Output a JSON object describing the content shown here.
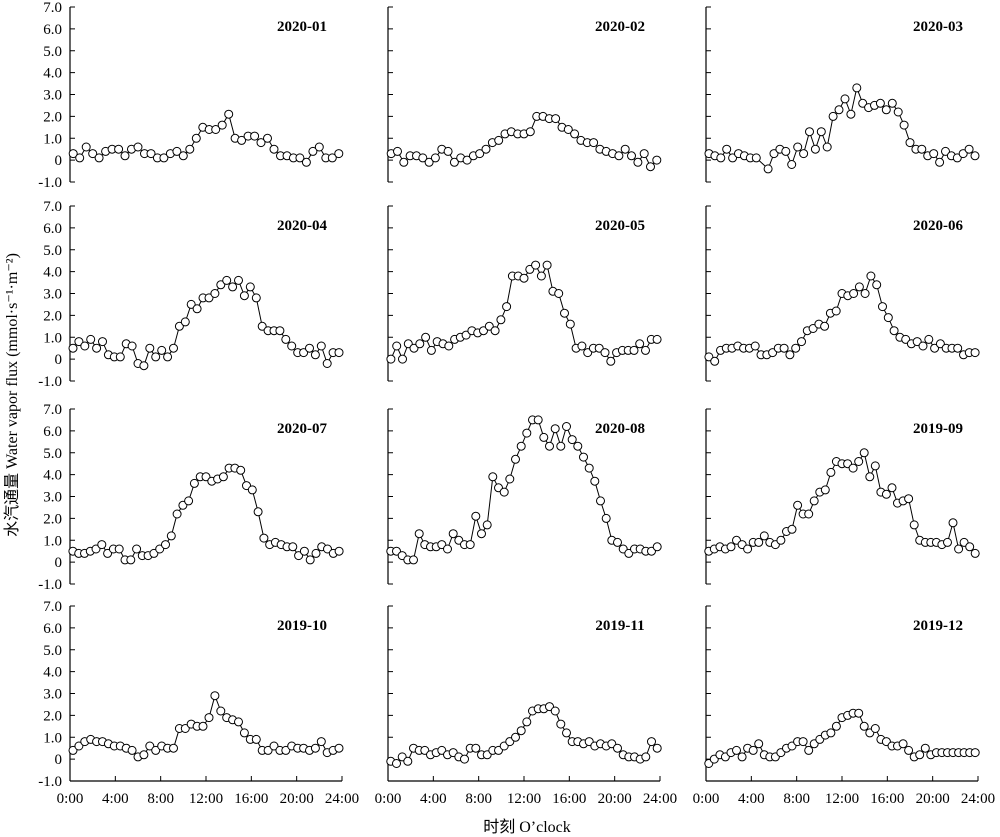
{
  "figure": {
    "ylabel": "水汽通量 Water vapor flux (mmol·s⁻¹·m⁻²)",
    "xlabel": "时刻 O’clock"
  },
  "chart_data": [
    {
      "type": "line",
      "title": "2020-01",
      "x_ticks": [
        "0:00",
        "4:00",
        "8:00",
        "12:00",
        "16:00",
        "20:00",
        "24:00"
      ],
      "y_ticks": [
        "7.0",
        "6.0",
        "5.0",
        "4.0",
        "3.0",
        "2.0",
        "1.0",
        "0",
        "-1.0"
      ],
      "ylim": [
        -1,
        7
      ],
      "xlim": [
        0,
        24
      ],
      "series": [
        {
          "values": [
            0.3,
            0.1,
            0.6,
            0.3,
            0.1,
            0.4,
            0.5,
            0.5,
            0.2,
            0.5,
            0.6,
            0.3,
            0.3,
            0.1,
            0.1,
            0.3,
            0.4,
            0.2,
            0.5,
            1.0,
            1.5,
            1.4,
            1.4,
            1.6,
            2.1,
            1.0,
            0.9,
            1.1,
            1.1,
            0.8,
            1.0,
            0.5,
            0.2,
            0.2,
            0.1,
            0.1,
            -0.1,
            0.4,
            0.6,
            0.1,
            0.1,
            0.3
          ]
        }
      ]
    },
    {
      "type": "line",
      "title": "2020-02",
      "x_ticks": [
        "0:00",
        "4:00",
        "8:00",
        "12:00",
        "16:00",
        "20:00",
        "24:00"
      ],
      "y_ticks": [
        "7.0",
        "6.0",
        "5.0",
        "4.0",
        "3.0",
        "2.0",
        "1.0",
        "0",
        "-1.0"
      ],
      "ylim": [
        -1,
        7
      ],
      "xlim": [
        0,
        24
      ],
      "series": [
        {
          "values": [
            0.3,
            0.4,
            -0.1,
            0.2,
            0.2,
            0.1,
            -0.1,
            0.1,
            0.5,
            0.4,
            -0.1,
            0.1,
            0.0,
            0.2,
            0.3,
            0.5,
            0.8,
            0.9,
            1.2,
            1.3,
            1.2,
            1.2,
            1.3,
            2.0,
            2.0,
            1.9,
            1.9,
            1.5,
            1.4,
            1.2,
            0.9,
            0.8,
            0.8,
            0.5,
            0.4,
            0.3,
            0.2,
            0.5,
            0.2,
            -0.1,
            0.3,
            -0.3,
            0.0
          ]
        }
      ]
    },
    {
      "type": "line",
      "title": "2020-03",
      "x_ticks": [
        "0:00",
        "4:00",
        "8:00",
        "12:00",
        "16:00",
        "20:00",
        "24:00"
      ],
      "y_ticks": [
        "7.0",
        "6.0",
        "5.0",
        "4.0",
        "3.0",
        "2.0",
        "1.0",
        "0",
        "-1.0"
      ],
      "ylim": [
        -1,
        7
      ],
      "xlim": [
        0,
        24
      ],
      "series": [
        {
          "values": [
            0.3,
            0.2,
            0.1,
            0.5,
            0.1,
            0.3,
            0.2,
            0.1,
            0.1,
            null,
            -0.4,
            0.3,
            0.5,
            0.4,
            -0.2,
            0.6,
            0.3,
            1.3,
            0.5,
            1.3,
            0.6,
            2.0,
            2.3,
            2.8,
            2.1,
            3.3,
            2.6,
            2.4,
            2.5,
            2.6,
            2.3,
            2.6,
            2.2,
            1.6,
            0.8,
            0.5,
            0.5,
            0.2,
            0.3,
            -0.1,
            0.4,
            0.2,
            0.1,
            0.3,
            0.5,
            0.2
          ]
        }
      ]
    },
    {
      "type": "line",
      "title": "2020-04",
      "x_ticks": [
        "0:00",
        "4:00",
        "8:00",
        "12:00",
        "16:00",
        "20:00",
        "24:00"
      ],
      "y_ticks": [
        "7.0",
        "6.0",
        "5.0",
        "4.0",
        "3.0",
        "2.0",
        "1.0",
        "0",
        "-1.0"
      ],
      "ylim": [
        -1,
        7
      ],
      "xlim": [
        0,
        24
      ],
      "series": [
        {
          "values": [
            0.5,
            0.8,
            0.6,
            0.9,
            0.5,
            0.8,
            0.2,
            0.1,
            0.1,
            0.7,
            0.6,
            -0.2,
            -0.3,
            0.5,
            0.1,
            0.4,
            0.1,
            0.5,
            1.5,
            1.7,
            2.5,
            2.3,
            2.8,
            2.8,
            3.0,
            3.4,
            3.6,
            3.3,
            3.6,
            2.9,
            3.3,
            2.8,
            1.5,
            1.3,
            1.3,
            1.3,
            0.9,
            0.6,
            0.3,
            0.3,
            0.5,
            0.2,
            0.6,
            -0.2,
            0.3,
            0.3
          ]
        }
      ]
    },
    {
      "type": "line",
      "title": "2020-05",
      "x_ticks": [
        "0:00",
        "4:00",
        "8:00",
        "12:00",
        "16:00",
        "20:00",
        "24:00"
      ],
      "y_ticks": [
        "7.0",
        "6.0",
        "5.0",
        "4.0",
        "3.0",
        "2.0",
        "1.0",
        "0",
        "-1.0"
      ],
      "ylim": [
        -1,
        7
      ],
      "xlim": [
        0,
        24
      ],
      "series": [
        {
          "values": [
            0.0,
            0.6,
            0.0,
            0.7,
            0.5,
            0.7,
            1.0,
            0.4,
            0.8,
            0.7,
            0.6,
            0.9,
            1.0,
            1.1,
            1.3,
            1.2,
            1.3,
            1.5,
            1.3,
            1.8,
            2.4,
            3.8,
            3.8,
            3.7,
            4.1,
            4.3,
            3.8,
            4.3,
            3.1,
            3.0,
            2.1,
            1.6,
            0.5,
            0.6,
            0.3,
            0.5,
            0.5,
            0.3,
            -0.1,
            0.3,
            0.4,
            0.4,
            0.4,
            0.7,
            0.4,
            0.9,
            0.9
          ]
        }
      ]
    },
    {
      "type": "line",
      "title": "2020-06",
      "x_ticks": [
        "0:00",
        "4:00",
        "8:00",
        "12:00",
        "16:00",
        "20:00",
        "24:00"
      ],
      "y_ticks": [
        "7.0",
        "6.0",
        "5.0",
        "4.0",
        "3.0",
        "2.0",
        "1.0",
        "0",
        "-1.0"
      ],
      "ylim": [
        -1,
        7
      ],
      "xlim": [
        0,
        24
      ],
      "series": [
        {
          "values": [
            0.1,
            -0.1,
            0.4,
            0.5,
            0.5,
            0.6,
            0.5,
            0.5,
            0.6,
            0.2,
            0.2,
            0.3,
            0.5,
            0.5,
            0.2,
            0.5,
            0.8,
            1.3,
            1.4,
            1.6,
            1.5,
            2.1,
            2.2,
            3.0,
            2.9,
            3.0,
            3.3,
            3.0,
            3.8,
            3.4,
            2.4,
            1.9,
            1.3,
            1.0,
            0.9,
            0.7,
            0.8,
            0.6,
            0.9,
            0.5,
            0.7,
            0.5,
            0.5,
            0.5,
            0.2,
            0.3,
            0.3
          ]
        }
      ]
    },
    {
      "type": "line",
      "title": "2020-07",
      "x_ticks": [
        "0:00",
        "4:00",
        "8:00",
        "12:00",
        "16:00",
        "20:00",
        "24:00"
      ],
      "y_ticks": [
        "7.0",
        "6.0",
        "5.0",
        "4.0",
        "3.0",
        "2.0",
        "1.0",
        "0",
        "-1.0"
      ],
      "ylim": [
        -1,
        7
      ],
      "xlim": [
        0,
        24
      ],
      "series": [
        {
          "values": [
            0.5,
            0.4,
            0.4,
            0.5,
            0.6,
            0.8,
            0.4,
            0.6,
            0.6,
            0.1,
            0.1,
            0.6,
            0.3,
            0.3,
            0.4,
            0.6,
            0.8,
            1.2,
            2.2,
            2.6,
            2.8,
            3.6,
            3.9,
            3.9,
            3.7,
            3.8,
            3.9,
            4.3,
            4.3,
            4.2,
            3.5,
            3.3,
            2.3,
            1.1,
            0.8,
            0.9,
            0.8,
            0.7,
            0.7,
            0.3,
            0.5,
            0.1,
            0.4,
            0.7,
            0.6,
            0.4,
            0.5
          ]
        }
      ]
    },
    {
      "type": "line",
      "title": "2020-08",
      "x_ticks": [
        "0:00",
        "4:00",
        "8:00",
        "12:00",
        "16:00",
        "20:00",
        "24:00"
      ],
      "y_ticks": [
        "7.0",
        "6.0",
        "5.0",
        "4.0",
        "3.0",
        "2.0",
        "1.0",
        "0",
        "-1.0"
      ],
      "ylim": [
        -1,
        7
      ],
      "xlim": [
        0,
        24
      ],
      "series": [
        {
          "values": [
            0.5,
            0.5,
            0.3,
            0.1,
            0.1,
            1.3,
            0.8,
            0.7,
            0.7,
            0.8,
            0.6,
            1.3,
            1.0,
            0.8,
            0.8,
            2.1,
            1.3,
            1.7,
            3.9,
            3.4,
            3.2,
            3.8,
            4.7,
            5.3,
            5.9,
            6.5,
            6.5,
            5.7,
            5.3,
            6.1,
            5.3,
            6.2,
            5.6,
            5.3,
            4.8,
            4.3,
            3.7,
            2.8,
            2.0,
            1.0,
            0.9,
            0.6,
            0.4,
            0.6,
            0.6,
            0.5,
            0.5,
            0.7
          ]
        }
      ]
    },
    {
      "type": "line",
      "title": "2019-09",
      "x_ticks": [
        "0:00",
        "4:00",
        "8:00",
        "12:00",
        "16:00",
        "20:00",
        "24:00"
      ],
      "y_ticks": [
        "7.0",
        "6.0",
        "5.0",
        "4.0",
        "3.0",
        "2.0",
        "1.0",
        "0",
        "-1.0"
      ],
      "ylim": [
        -1,
        7
      ],
      "xlim": [
        0,
        24
      ],
      "series": [
        {
          "values": [
            0.5,
            0.6,
            0.7,
            0.6,
            0.7,
            1.0,
            0.8,
            0.6,
            0.9,
            0.9,
            1.2,
            0.9,
            0.8,
            1.0,
            1.4,
            1.5,
            2.6,
            2.2,
            2.2,
            2.8,
            3.2,
            3.3,
            4.1,
            4.6,
            4.5,
            4.5,
            4.3,
            4.6,
            5.0,
            3.9,
            4.4,
            3.2,
            3.1,
            3.4,
            2.7,
            2.8,
            2.9,
            1.7,
            1.0,
            0.9,
            0.9,
            0.9,
            0.8,
            0.9,
            1.8,
            0.6,
            0.9,
            0.7,
            0.4
          ]
        }
      ]
    },
    {
      "type": "line",
      "title": "2019-10",
      "x_ticks": [
        "0:00",
        "4:00",
        "8:00",
        "12:00",
        "16:00",
        "20:00",
        "24:00"
      ],
      "y_ticks": [
        "7.0",
        "6.0",
        "5.0",
        "4.0",
        "3.0",
        "2.0",
        "1.0",
        "0",
        "-1.0"
      ],
      "ylim": [
        -1,
        7
      ],
      "xlim": [
        0,
        24
      ],
      "series": [
        {
          "values": [
            0.4,
            0.6,
            0.8,
            0.9,
            0.8,
            0.8,
            0.7,
            0.6,
            0.6,
            0.5,
            0.4,
            0.1,
            0.2,
            0.6,
            0.4,
            0.6,
            0.5,
            0.5,
            1.4,
            1.4,
            1.6,
            1.5,
            1.5,
            1.9,
            2.9,
            2.2,
            1.9,
            1.8,
            1.7,
            1.2,
            0.9,
            0.9,
            0.4,
            0.4,
            0.6,
            0.4,
            0.4,
            0.6,
            0.5,
            0.5,
            0.4,
            0.5,
            0.8,
            0.3,
            0.4,
            0.5
          ]
        }
      ]
    },
    {
      "type": "line",
      "title": "2019-11",
      "x_ticks": [
        "0:00",
        "4:00",
        "8:00",
        "12:00",
        "16:00",
        "20:00",
        "24:00"
      ],
      "y_ticks": [
        "7.0",
        "6.0",
        "5.0",
        "4.0",
        "3.0",
        "2.0",
        "1.0",
        "0",
        "-1.0"
      ],
      "ylim": [
        -1,
        7
      ],
      "xlim": [
        0,
        24
      ],
      "series": [
        {
          "values": [
            -0.1,
            -0.2,
            0.1,
            -0.1,
            0.5,
            0.4,
            0.4,
            0.2,
            0.3,
            0.4,
            0.2,
            0.3,
            0.1,
            0.0,
            0.5,
            0.5,
            0.2,
            0.2,
            0.4,
            0.4,
            0.6,
            0.8,
            1.0,
            1.3,
            1.7,
            2.2,
            2.3,
            2.3,
            2.4,
            2.2,
            1.6,
            1.2,
            0.8,
            0.8,
            0.7,
            0.8,
            0.6,
            0.7,
            0.6,
            0.7,
            0.5,
            0.2,
            0.1,
            0.1,
            0.0,
            0.1,
            0.8,
            0.5
          ]
        }
      ]
    },
    {
      "type": "line",
      "title": "2019-12",
      "x_ticks": [
        "0:00",
        "4:00",
        "8:00",
        "12:00",
        "16:00",
        "20:00",
        "24:00"
      ],
      "y_ticks": [
        "7.0",
        "6.0",
        "5.0",
        "4.0",
        "3.0",
        "2.0",
        "1.0",
        "0",
        "-1.0"
      ],
      "ylim": [
        -1,
        7
      ],
      "xlim": [
        0,
        24
      ],
      "series": [
        {
          "values": [
            -0.2,
            0.0,
            0.2,
            0.1,
            0.3,
            0.4,
            0.1,
            0.5,
            0.4,
            0.7,
            0.2,
            0.1,
            0.1,
            0.3,
            0.5,
            0.6,
            0.8,
            0.8,
            0.4,
            0.7,
            0.9,
            1.1,
            1.2,
            1.5,
            1.9,
            2.0,
            2.1,
            2.1,
            1.5,
            1.2,
            1.4,
            0.9,
            0.8,
            0.6,
            0.6,
            0.7,
            0.4,
            0.1,
            0.2,
            0.5,
            0.2,
            0.3,
            0.3,
            0.3,
            0.3,
            0.3,
            0.3,
            0.3,
            0.3
          ]
        }
      ]
    }
  ]
}
